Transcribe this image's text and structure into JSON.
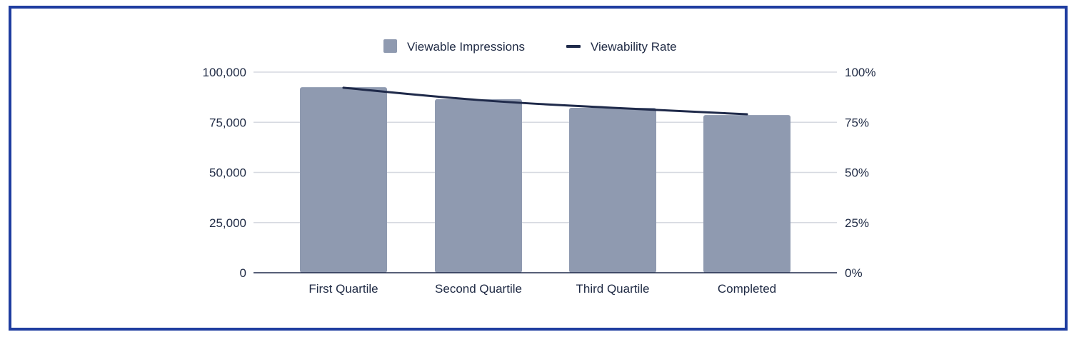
{
  "chart_data": {
    "type": "bar",
    "title": "",
    "categories": [
      "First Quartile",
      "Second Quartile",
      "Third Quartile",
      "Completed"
    ],
    "series": [
      {
        "name": "Viewable Impressions",
        "type": "bar",
        "axis": "left",
        "values": [
          92500,
          86500,
          82200,
          78600
        ],
        "color": "#8f9ab0"
      },
      {
        "name": "Viewability Rate",
        "type": "line",
        "axis": "right",
        "values": [
          92.2,
          86.1,
          82.2,
          79.0
        ],
        "unit": "%",
        "color": "#1f2a4a"
      }
    ],
    "xlabel": "",
    "ylabel": "",
    "ylim": [
      0,
      100000
    ],
    "y2lim": [
      0,
      100
    ],
    "yticks": [
      "0",
      "25,000",
      "50,000",
      "75,000",
      "100,000"
    ],
    "y2ticks": [
      "0%",
      "25%",
      "50%",
      "75%",
      "100%"
    ],
    "grid": true,
    "legend_position": "top"
  },
  "legend": {
    "bar_label": "Viewable Impressions",
    "line_label": "Viewability Rate"
  },
  "colors": {
    "border": "#1f3da0",
    "bar": "#8f9ab0",
    "line": "#1f2a4a",
    "grid": "#d6d9e0",
    "axis": "#1f2a4a"
  }
}
